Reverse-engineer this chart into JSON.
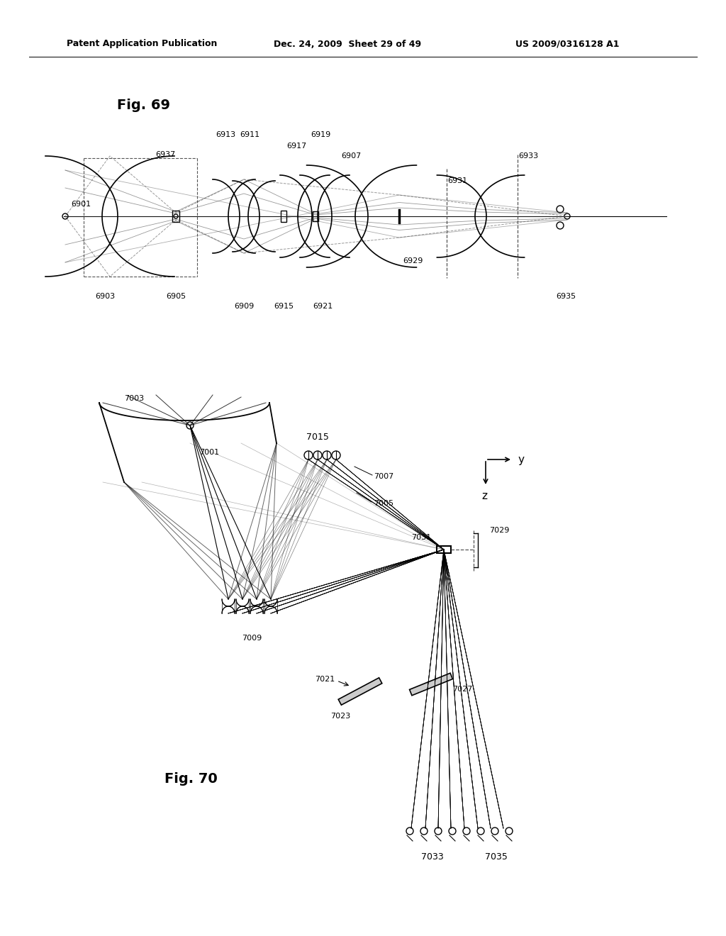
{
  "bg_color": "#ffffff",
  "page_width": 10.24,
  "page_height": 13.2,
  "header_text": "Patent Application Publication",
  "header_date": "Dec. 24, 2009  Sheet 29 of 49",
  "header_patent": "US 2009/0316128 A1",
  "fig69_label": "Fig. 69",
  "fig70_label": "Fig. 70",
  "text_color": "#000000",
  "line_color": "#000000",
  "dashed_color": "#555555"
}
